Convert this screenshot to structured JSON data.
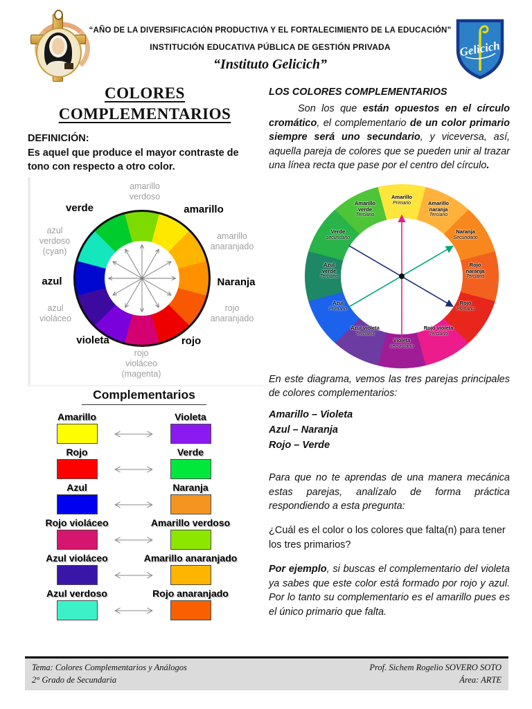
{
  "header": {
    "line1": "“AÑO DE LA DIVERSIFICACIÓN PRODUCTIVA Y EL FORTALECIMIENTO DE LA EDUCACIÓN”",
    "line2": "INSTITUCIÓN EDUCATIVA PÚBLICA DE GESTIÓN PRIVADA",
    "line3": "“Instituto Gelicich”",
    "shield_text": "Gelicich"
  },
  "left": {
    "title_line1": "COLORES",
    "title_line2": "COMPLEMENTARIOS",
    "definition_label": "DEFINICIÓN:",
    "definition_text": "Es aquel que produce el mayor contraste de tono con respecto a otro color.",
    "wheel": {
      "segment_colors": [
        "#7EDB00",
        "#FFE800",
        "#FFB400",
        "#FF9000",
        "#F85800",
        "#EE0000",
        "#D40072",
        "#7A00DC",
        "#3C0A9E",
        "#0008D0",
        "#14E6BE",
        "#00CC2E"
      ],
      "labels": [
        {
          "text": "amarillo\nverdoso"
        },
        {
          "text": "verde"
        },
        {
          "text": "amarillo"
        },
        {
          "text": "azul\nverdoso\n(cyan)"
        },
        {
          "text": "amarillo\nanaranjado"
        },
        {
          "text": "azul"
        },
        {
          "text": "Naranja"
        },
        {
          "text": "azul\nvioláceo"
        },
        {
          "text": "rojo\nanaranjado"
        },
        {
          "text": "violeta"
        },
        {
          "text": "rojo"
        },
        {
          "text": "rojo\nvioláceo\n(magenta)"
        }
      ]
    },
    "pairs_title": "Complementarios",
    "pairs": [
      {
        "left_label": "Amarillo",
        "left_color": "#FFFF00",
        "right_label": "Violeta",
        "right_color": "#8A1AF0"
      },
      {
        "left_label": "Rojo",
        "left_color": "#FF0000",
        "right_label": "Verde",
        "right_color": "#00E83C"
      },
      {
        "left_label": "Azul",
        "left_color": "#0000F0",
        "right_label": "Naranja",
        "right_color": "#F5941E"
      },
      {
        "left_label": "Rojo violáceo",
        "left_color": "#D6156E",
        "right_label": "Amarillo verdoso",
        "right_color": "#8CE600"
      },
      {
        "left_label": "Azul violáceo",
        "left_color": "#3A16A8",
        "right_label": "Amarillo anaranjado",
        "right_color": "#FFB400"
      },
      {
        "left_label": "Azul verdoso",
        "left_color": "#3CF0C8",
        "right_label": "Rojo anaranjado",
        "right_color": "#F96000"
      }
    ]
  },
  "right": {
    "heading": "LOS COLORES COMPLEMENTARIOS",
    "p1": [
      {
        "t": "Son los que ",
        "b": false
      },
      {
        "t": "están opuestos en el círculo cromático",
        "b": true
      },
      {
        "t": ", el complementario ",
        "b": false
      },
      {
        "t": "de un color primario siempre será uno secundario",
        "b": true
      },
      {
        "t": ", y viceversa, así, aquella pareja de colores que se pueden unir  al trazar una línea recta que pase por el centro del círculo",
        "b": false
      },
      {
        "t": ".",
        "b": true
      }
    ],
    "wheel": {
      "segment_colors": [
        "#FFE53C",
        "#FFB13C",
        "#F8881E",
        "#F2621E",
        "#E8261C",
        "#EC1C8C",
        "#A01C96",
        "#6C3CA2",
        "#1C62EC",
        "#1E8866",
        "#28B448",
        "#4EC438"
      ],
      "labels": [
        {
          "name": "Amarillo",
          "type": "Primario"
        },
        {
          "name": "Amarillo\nnaranja",
          "type": "Terciario"
        },
        {
          "name": "Naranja",
          "type": "Secundario"
        },
        {
          "name": "Rojo\nnaranja",
          "type": "Terciario"
        },
        {
          "name": "Rojo",
          "type": "Primario"
        },
        {
          "name": "Rojo violeta",
          "type": "Terciario"
        },
        {
          "name": "Violeta",
          "type": "secundario"
        },
        {
          "name": "Azul violeta",
          "type": "Terciario"
        },
        {
          "name": "Azul",
          "type": "Primario"
        },
        {
          "name": "Azul\nverde",
          "type": "Terciario"
        },
        {
          "name": "Verde",
          "type": "secundario"
        },
        {
          "name": "Amarillo\nverde",
          "type": "Terciario"
        }
      ],
      "arrow_colors": {
        "vertical": "#E0218C",
        "diagonal_up": "#00A878",
        "diagonal_down": "#1A2E78"
      }
    },
    "p2": "En este diagrama, vemos las tres parejas principales de colores complementarios:",
    "pairs_list": [
      "Amarillo – Violeta",
      "Azul – Naranja",
      "Rojo – Verde"
    ],
    "p3": "Para que no te aprendas de una manera mecánica estas parejas, analízalo de forma práctica respondiendo a esta pregunta:",
    "p4": "¿Cuál es el color o los colores que falta(n) para tener los tres primarios?",
    "p5": [
      {
        "t": "Por ejemplo",
        "b": true
      },
      {
        "t": ", si buscas el complementario del violeta ya sabes que este color está formado por rojo y azul. Por lo tanto su complementario es el amarillo pues es el único primario que falta.",
        "b": false
      }
    ]
  },
  "footer": {
    "tema": "Tema: Colores Complementarios y Análogos",
    "grado": "2° Grado de Secundaria",
    "prof": "Prof. Sichem Rogelio SOVERO SOTO",
    "area": "Área: ARTE"
  }
}
